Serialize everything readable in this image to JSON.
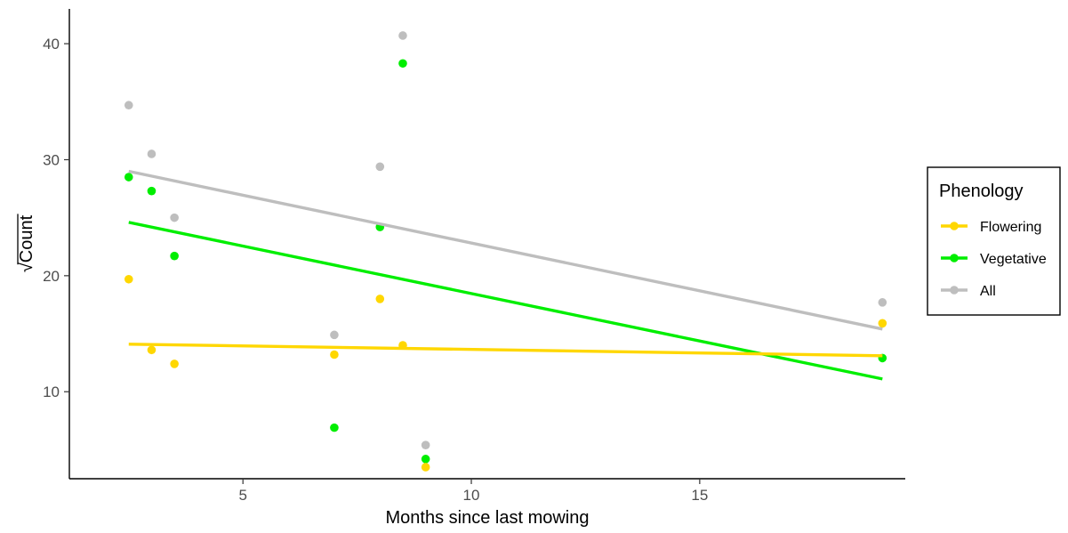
{
  "chart_data": {
    "type": "scatter",
    "xlabel": "Months since last mowing",
    "ylabel": "Count",
    "ylabel_prefix": "√",
    "xlim": [
      1.2,
      19.5
    ],
    "ylim": [
      2.5,
      43
    ],
    "xticks": [
      5,
      10,
      15
    ],
    "yticks": [
      10,
      20,
      30,
      40
    ],
    "grid": false,
    "legend": {
      "title": "Phenology",
      "placement": "right"
    },
    "series": [
      {
        "name": "Flowering",
        "color": "#FFD700",
        "points": [
          [
            2.5,
            19.7
          ],
          [
            3.0,
            13.6
          ],
          [
            3.5,
            12.4
          ],
          [
            7.0,
            13.2
          ],
          [
            8.0,
            18.0
          ],
          [
            8.5,
            14.0
          ],
          [
            9.0,
            3.5
          ],
          [
            19.0,
            15.9
          ]
        ],
        "fit": [
          [
            2.5,
            14.1
          ],
          [
            19.0,
            13.1
          ]
        ]
      },
      {
        "name": "Vegetative",
        "color": "#00EE00",
        "points": [
          [
            2.5,
            28.5
          ],
          [
            3.0,
            27.3
          ],
          [
            3.5,
            21.7
          ],
          [
            7.0,
            6.9
          ],
          [
            8.0,
            24.2
          ],
          [
            8.5,
            38.3
          ],
          [
            9.0,
            4.2
          ],
          [
            19.0,
            12.9
          ]
        ],
        "fit": [
          [
            2.5,
            24.6
          ],
          [
            19.0,
            11.1
          ]
        ]
      },
      {
        "name": "All",
        "color": "#BEBEBE",
        "points": [
          [
            2.5,
            34.7
          ],
          [
            3.0,
            30.5
          ],
          [
            3.5,
            25.0
          ],
          [
            7.0,
            14.9
          ],
          [
            8.0,
            29.4
          ],
          [
            8.5,
            40.7
          ],
          [
            9.0,
            5.4
          ],
          [
            19.0,
            17.7
          ]
        ],
        "fit": [
          [
            2.5,
            29.0
          ],
          [
            19.0,
            15.4
          ]
        ]
      }
    ]
  }
}
